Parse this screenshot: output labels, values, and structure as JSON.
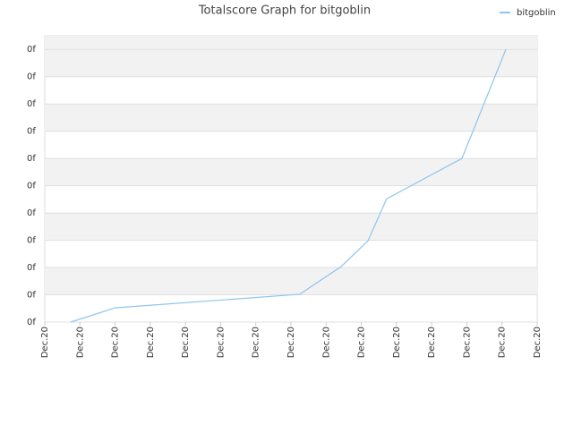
{
  "chart_data": {
    "type": "line",
    "title": "Totalscore Graph for bitgoblin",
    "series": [
      {
        "name": "bitgoblin",
        "color": "#8ec4ee",
        "x": [
          0.74,
          1.99,
          7.25,
          8.42,
          9.19,
          9.72,
          11.86,
          13.11
        ],
        "values": [
          0,
          0.52,
          1.02,
          2.03,
          2.98,
          4.52,
          6.0,
          10.0
        ]
      }
    ],
    "xlim": [
      0,
      14
    ],
    "xticks": [
      {
        "value": 0,
        "label": "Dec.20"
      },
      {
        "value": 1,
        "label": "Dec.20"
      },
      {
        "value": 2,
        "label": "Dec.20"
      },
      {
        "value": 3,
        "label": "Dec.20"
      },
      {
        "value": 4,
        "label": "Dec.20"
      },
      {
        "value": 5,
        "label": "Dec.20"
      },
      {
        "value": 6,
        "label": "Dec.20"
      },
      {
        "value": 7,
        "label": "Dec.20"
      },
      {
        "value": 8,
        "label": "Dec.20"
      },
      {
        "value": 9,
        "label": "Dec.20"
      },
      {
        "value": 10,
        "label": "Dec.20"
      },
      {
        "value": 11,
        "label": "Dec.20"
      },
      {
        "value": 12,
        "label": "Dec.20"
      },
      {
        "value": 13,
        "label": "Dec.20"
      },
      {
        "value": 14,
        "label": "Dec.20"
      }
    ],
    "ylim": [
      0,
      10.5
    ],
    "yticks": [
      {
        "value": 0,
        "label": "0f"
      },
      {
        "value": 1,
        "label": "0f"
      },
      {
        "value": 2,
        "label": "0f"
      },
      {
        "value": 3,
        "label": "0f"
      },
      {
        "value": 4,
        "label": "0f"
      },
      {
        "value": 5,
        "label": "0f"
      },
      {
        "value": 6,
        "label": "0f"
      },
      {
        "value": 7,
        "label": "0f"
      },
      {
        "value": 8,
        "label": "0f"
      },
      {
        "value": 9,
        "label": "0f"
      },
      {
        "value": 10,
        "label": "0f"
      }
    ],
    "grid": true,
    "legend": "top-right"
  }
}
